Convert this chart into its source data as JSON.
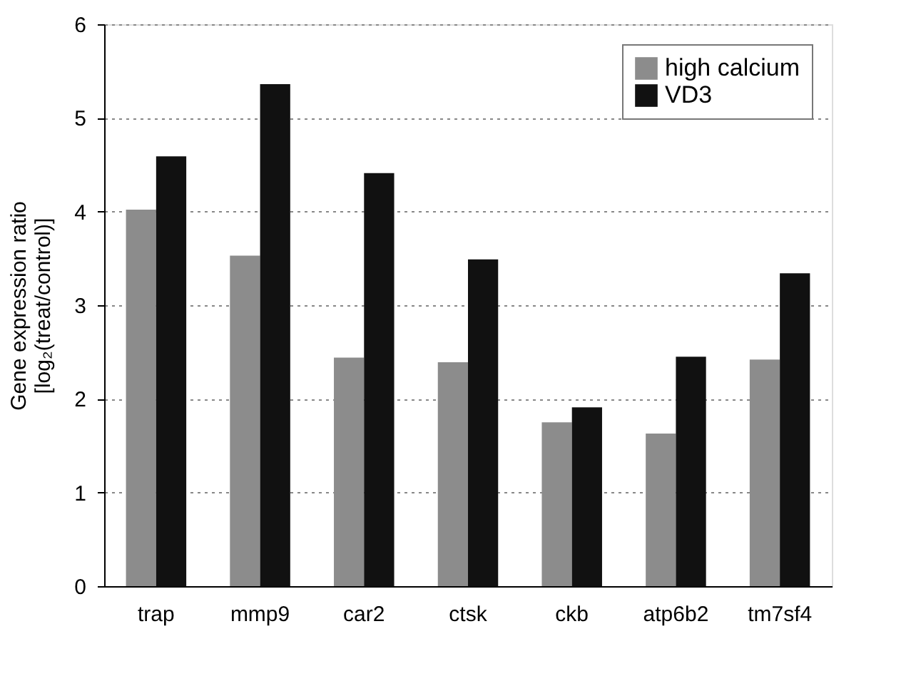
{
  "chart_data": {
    "type": "bar",
    "ylabel": "Gene expression ratio\n[log₂(treat/control)]",
    "categories": [
      "trap",
      "mmp9",
      "car2",
      "ctsk",
      "ckb",
      "atp6b2",
      "tm7sf4"
    ],
    "series": [
      {
        "name": "high calcium",
        "color": "#8c8c8c",
        "values": [
          4.02,
          3.53,
          2.44,
          2.39,
          1.75,
          1.63,
          2.42
        ]
      },
      {
        "name": "VD3",
        "color": "#111111",
        "values": [
          4.59,
          5.36,
          4.41,
          3.49,
          1.91,
          2.45,
          3.34
        ]
      }
    ],
    "ylim": [
      0,
      6
    ],
    "yticks": [
      0,
      1,
      2,
      3,
      4,
      5,
      6
    ],
    "grid": "y",
    "legend": "top right"
  }
}
